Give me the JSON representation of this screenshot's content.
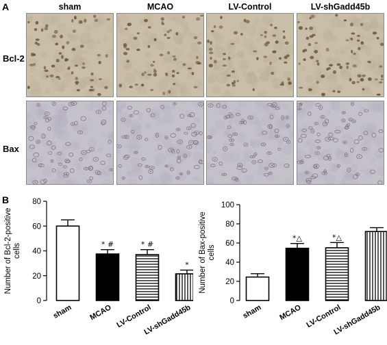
{
  "panel_a": {
    "letter": "A",
    "columns": [
      "sham",
      "MCAO",
      "LV-Control",
      "LV-shGadd45b"
    ],
    "rows": [
      "Bcl-2",
      "Bax"
    ],
    "tissue_colors": {
      "bcl2_bg": "#c9bfa9",
      "bcl2_cell": "#6e5a3f",
      "bax_bg": "#c4c1cb",
      "bax_cell": "#7a6f7c"
    }
  },
  "panel_b": {
    "letter": "B"
  },
  "chart_data": [
    {
      "type": "bar",
      "ylabel": "Number of  Bcl-2-positive cells",
      "categories": [
        "sham",
        "MCAO",
        "LV-Control",
        "LV-shGadd45b"
      ],
      "values": [
        60,
        37.5,
        37,
        21.5
      ],
      "errors": [
        5,
        3.5,
        4,
        3
      ],
      "annotations": [
        "",
        "* #",
        "* #",
        "*"
      ],
      "styles": [
        "white",
        "black",
        "hlines",
        "vlines"
      ],
      "ylim": [
        0,
        80
      ],
      "yticks": [
        0,
        20,
        40,
        60,
        80
      ]
    },
    {
      "type": "bar",
      "ylabel": "Number of  Bax-positive cells",
      "categories": [
        "sham",
        "MCAO",
        "LV-Control",
        "LV-shGadd45b"
      ],
      "values": [
        24.5,
        54.5,
        55,
        72
      ],
      "errors": [
        3.5,
        5,
        5.5,
        4
      ],
      "annotations": [
        "",
        "*△",
        "*△",
        ""
      ],
      "styles": [
        "white",
        "black",
        "hlines",
        "vlines"
      ],
      "ylim": [
        0,
        100
      ],
      "yticks": [
        0,
        20,
        40,
        60,
        80,
        100
      ]
    }
  ]
}
